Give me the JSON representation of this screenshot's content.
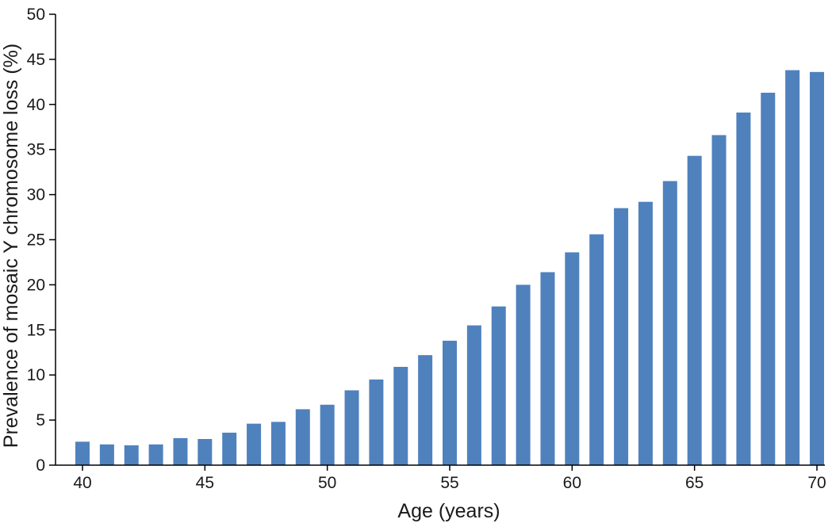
{
  "chart_data": {
    "type": "bar",
    "title": "",
    "xlabel": "Age (years)",
    "ylabel": "Prevalence of mosaic Y chromosome loss (%)",
    "ylim": [
      0,
      50
    ],
    "yticks": [
      "0",
      "5",
      "10",
      "15",
      "20",
      "25",
      "30",
      "35",
      "40",
      "45",
      "50"
    ],
    "xticks": [
      "40",
      "45",
      "50",
      "55",
      "60",
      "65",
      "70"
    ],
    "grid": false,
    "bar_color": "#4f81bd",
    "categories": [
      40,
      41,
      42,
      43,
      44,
      45,
      46,
      47,
      48,
      49,
      50,
      51,
      52,
      53,
      54,
      55,
      56,
      57,
      58,
      59,
      60,
      61,
      62,
      63,
      64,
      65,
      66,
      67,
      68,
      69,
      70
    ],
    "values": [
      2.6,
      2.3,
      2.2,
      2.3,
      3.0,
      2.9,
      3.6,
      4.6,
      4.8,
      6.2,
      6.7,
      8.3,
      9.5,
      10.9,
      12.2,
      13.8,
      15.5,
      17.6,
      20.0,
      21.4,
      23.6,
      25.6,
      28.5,
      29.2,
      31.5,
      34.3,
      36.6,
      39.1,
      41.3,
      43.8,
      43.6
    ]
  }
}
